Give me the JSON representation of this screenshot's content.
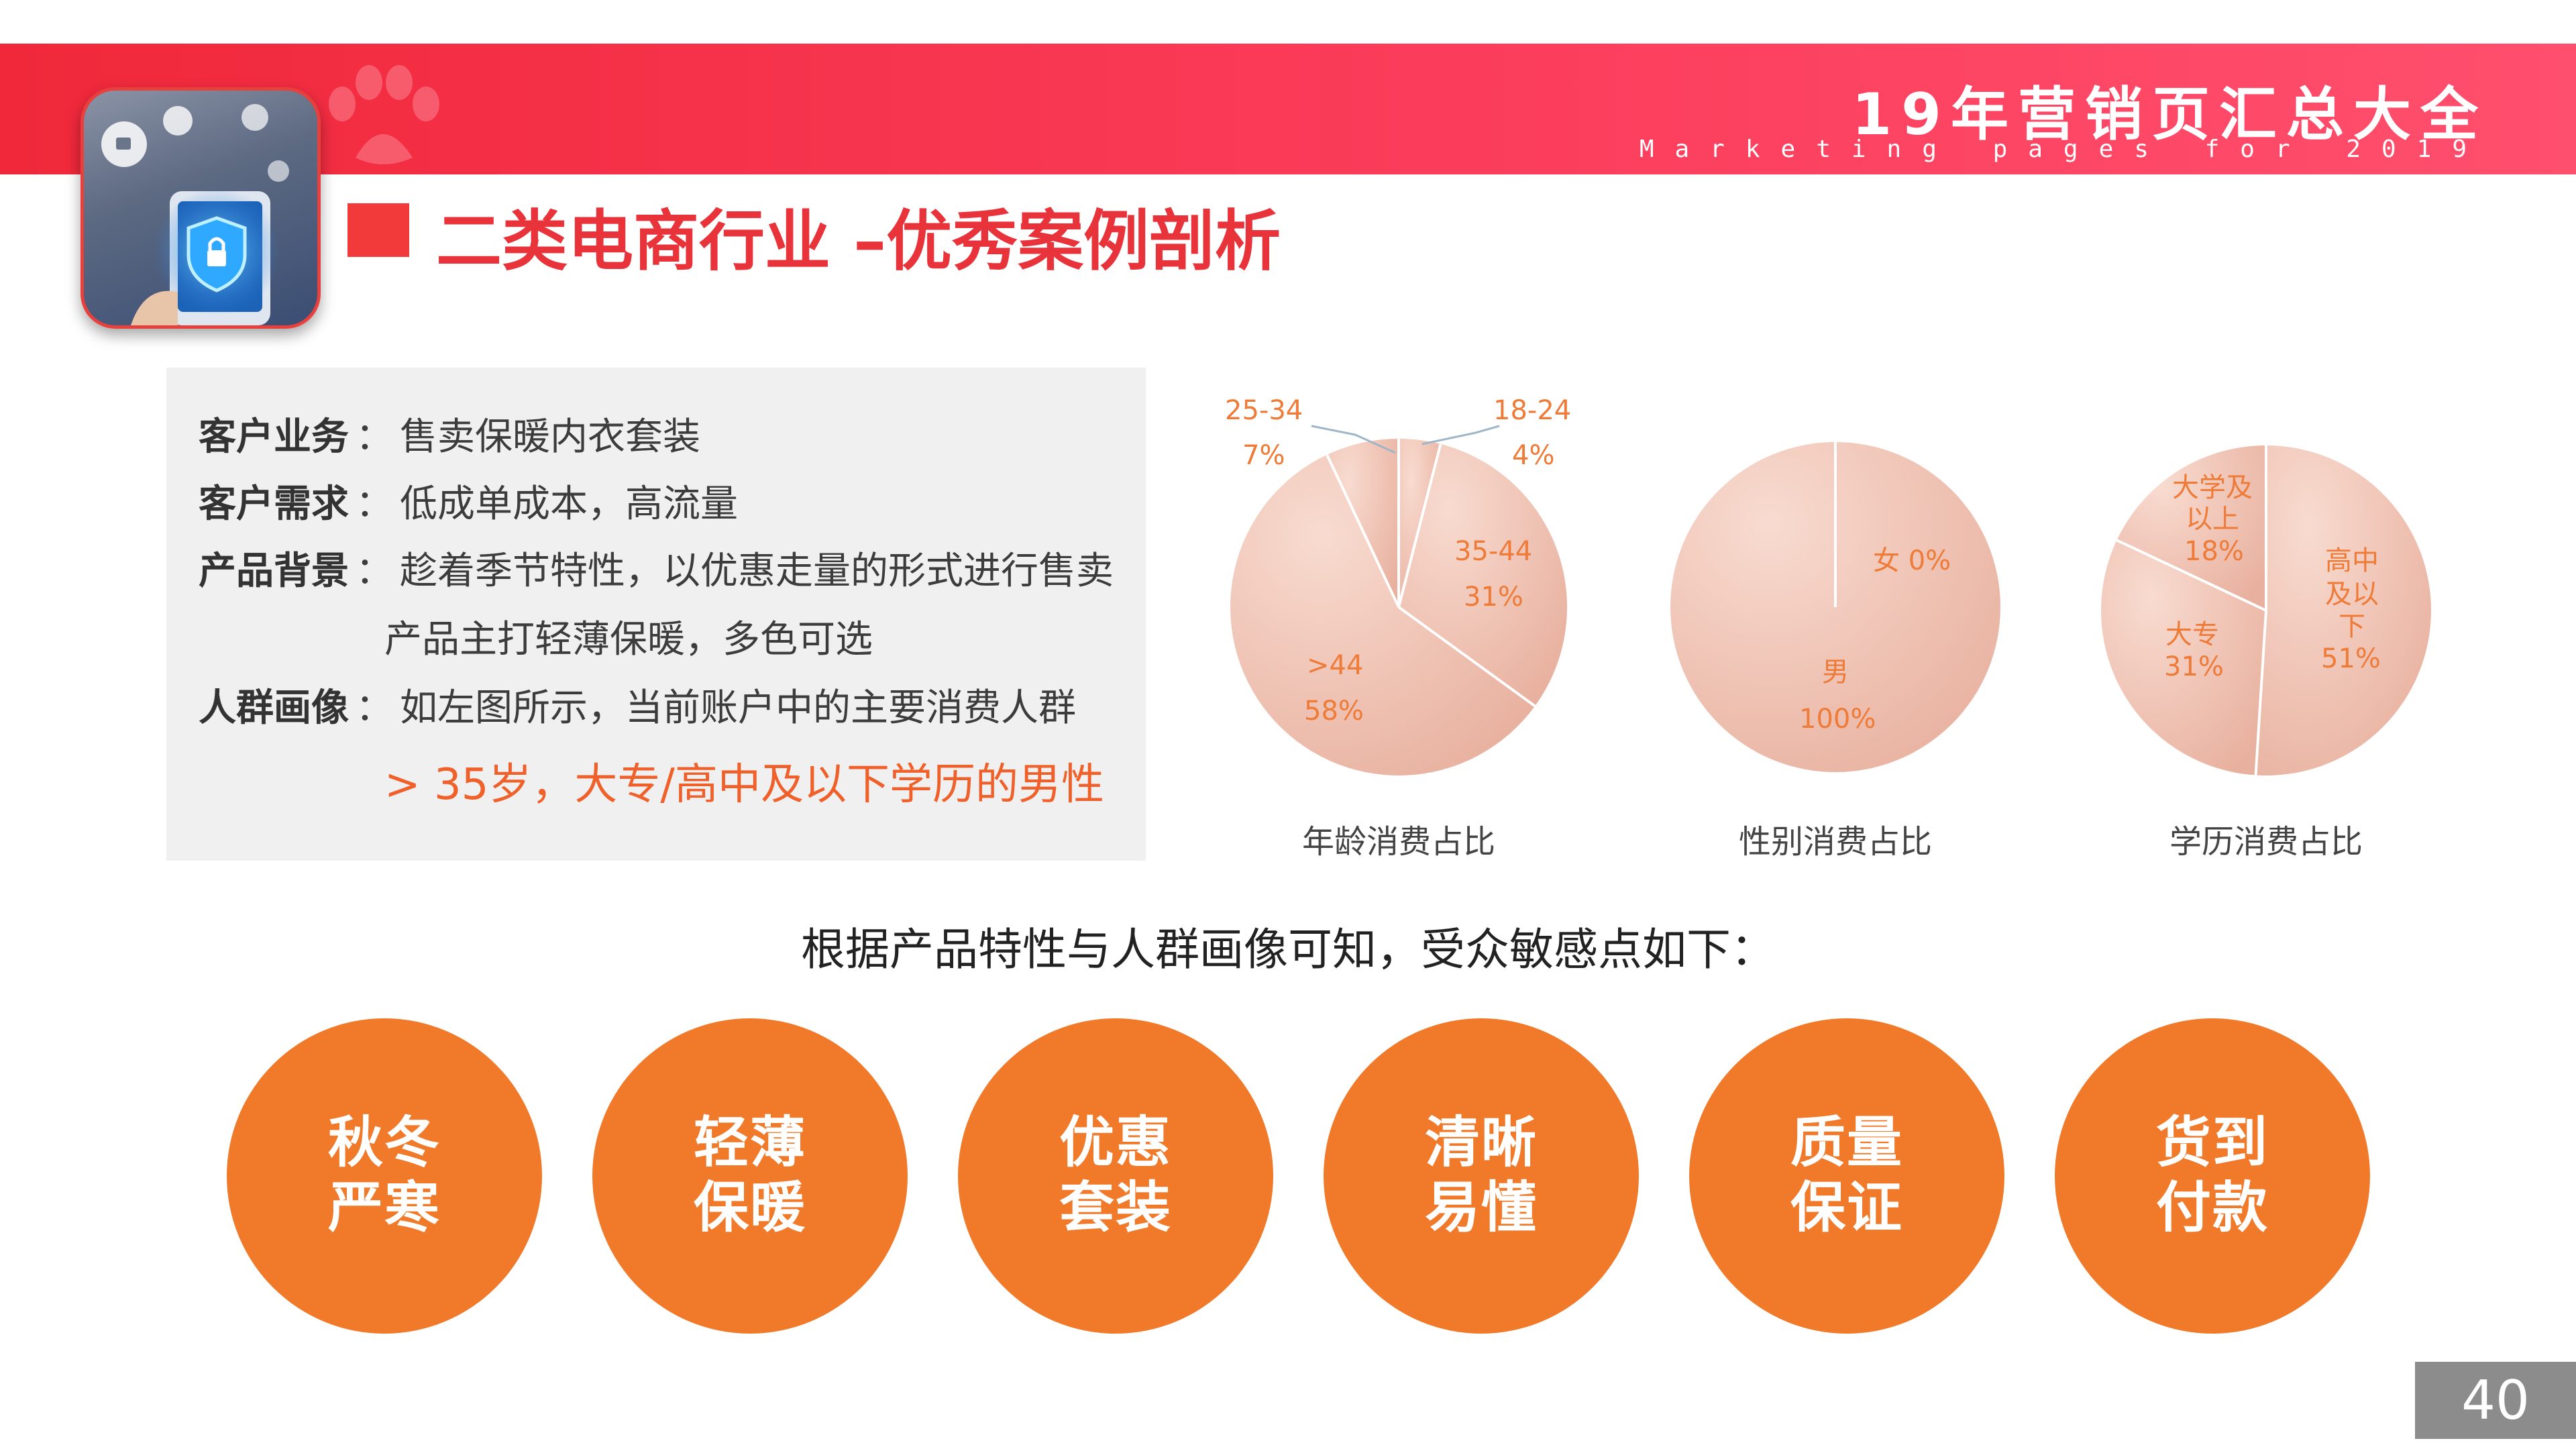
{
  "header": {
    "brand_title": "19年营销页汇总大全",
    "brand_subtitle": "Marketing pages for 2019"
  },
  "page_title": "二类电商行业 –优秀案例剖析",
  "info": {
    "rows": [
      {
        "label": "客户业务",
        "sep": "：",
        "value": "售卖保暖内衣套装"
      },
      {
        "label": "客户需求",
        "sep": "：",
        "value": "低成单成本，高流量"
      },
      {
        "label": "产品背景",
        "sep": "：",
        "value": "趁着季节特性，以优惠走量的形式进行售卖"
      },
      {
        "label": "",
        "sep": "",
        "value": "产品主打轻薄保暖，多色可选"
      },
      {
        "label": "人群画像",
        "sep": "：",
        "value": "如左图所示，当前账户中的主要消费人群"
      }
    ],
    "highlight": "> 35岁，大专/高中及以下学历的男性"
  },
  "chart_data": [
    {
      "type": "pie",
      "title": "年龄消费占比",
      "slices": [
        {
          "label": "18-24",
          "value": 4
        },
        {
          "label": "35-44",
          "value": 31
        },
        {
          "label": ">44",
          "value": 58
        },
        {
          "label": "25-34",
          "value": 7
        }
      ]
    },
    {
      "type": "pie",
      "title": "性别消费占比",
      "slices": [
        {
          "label": "女",
          "value": 0
        },
        {
          "label": "男",
          "value": 100
        }
      ]
    },
    {
      "type": "pie",
      "title": "学历消费占比",
      "slices": [
        {
          "label": "高中及以下",
          "value": 51
        },
        {
          "label": "大专",
          "value": 31
        },
        {
          "label": "大学及以上",
          "value": 18
        }
      ]
    }
  ],
  "pie_labels": {
    "age": {
      "l1824": "18-24",
      "p1824": "4%",
      "l2534": "25-34",
      "p2534": "7%",
      "l3544": "35-44",
      "p3544": "31%",
      "l44": ">44",
      "p44": "58%"
    },
    "gender": {
      "female": "女 0%",
      "male": "男",
      "male_pct": "100%"
    },
    "edu": {
      "hs1": "高中",
      "hs2": "及以",
      "hs3": "下",
      "hs_pct": "51%",
      "dz": "大专",
      "dz_pct": "31%",
      "dx1": "大学及",
      "dx2": "以上",
      "dx_pct": "18%"
    }
  },
  "summary": "根据产品特性与人群画像可知，受众敏感点如下：",
  "features": [
    {
      "line1": "秋冬",
      "line2": "严寒"
    },
    {
      "line1": "轻薄",
      "line2": "保暖"
    },
    {
      "line1": "优惠",
      "line2": "套装"
    },
    {
      "line1": "清晰",
      "line2": "易懂"
    },
    {
      "line1": "质量",
      "line2": "保证"
    },
    {
      "line1": "货到",
      "line2": "付款"
    }
  ],
  "page_number": "40",
  "colors": {
    "banner_red": "#f0283a",
    "accent_orange": "#f07a2a",
    "pie_fill_light": "#f8dbd0",
    "pie_fill_dark": "#e8b09e"
  },
  "icons": {
    "app_icon": "security-shield-phone-icon",
    "banner_mark": "paw-logo-icon"
  }
}
